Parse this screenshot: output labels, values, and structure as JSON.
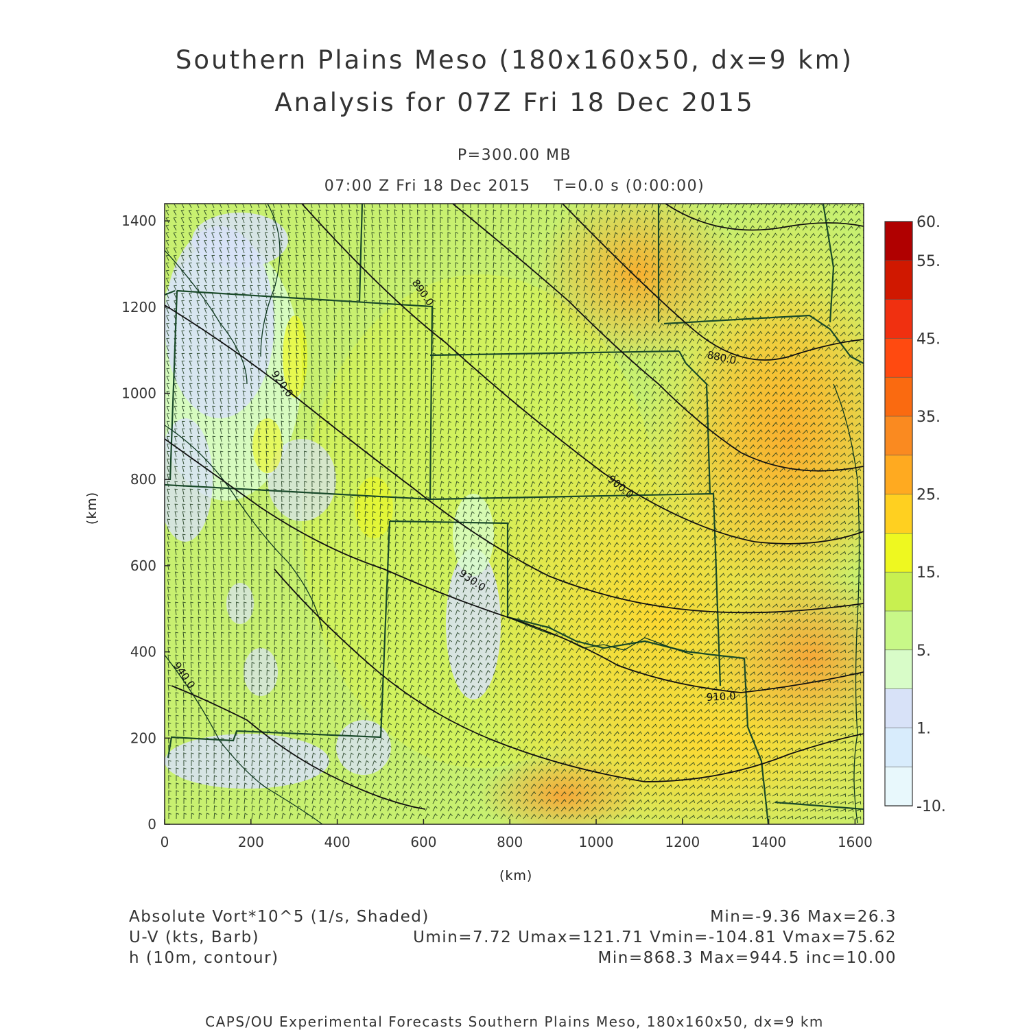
{
  "title": {
    "line1": "Southern Plains Meso (180x160x50, dx=9 km)",
    "line2": "Analysis for 07Z Fri 18 Dec 2015"
  },
  "subtitle": {
    "level": "P=300.00 MB",
    "time": "07:00 Z Fri 18 Dec 2015    T=0.0 s (0:00:00)"
  },
  "axes": {
    "xlabel": "(km)",
    "ylabel": "(km)",
    "xlim": [
      0,
      1620
    ],
    "ylim": [
      0,
      1440
    ],
    "xticks": [
      "0",
      "200",
      "400",
      "600",
      "800",
      "1000",
      "1200",
      "1400",
      "1600"
    ],
    "yticks": [
      "0",
      "200",
      "400",
      "600",
      "800",
      "1000",
      "1200",
      "1400"
    ]
  },
  "colorbar": {
    "labels": [
      "60.",
      "55.",
      "45.",
      "35.",
      "25.",
      "15.",
      "5.",
      "1.",
      "-10."
    ],
    "colors": [
      "#b00000",
      "#d01800",
      "#f03010",
      "#ff4a10",
      "#fa6a10",
      "#fa8a20",
      "#ffaa20",
      "#ffd020",
      "#eef820",
      "#c8f050",
      "#c8f888",
      "#d8fcc8",
      "#d8e2f8",
      "#d8ecfc",
      "#e8f8fc"
    ]
  },
  "contours": {
    "labels": [
      "880.0",
      "890.0",
      "900.0",
      "910.0",
      "920.0",
      "930.0",
      "940.0"
    ]
  },
  "legend": {
    "field1_name": "Absolute Vort*10^5 (1/s, Shaded)",
    "field1_stats": "Min=-9.36 Max=26.3",
    "field2_name": "U-V (kts, Barb)",
    "field2_stats": "Umin=7.72 Umax=121.71 Vmin=-104.81 Vmax=75.62",
    "field3_name": "h (10m, contour)",
    "field3_stats": "Min=868.3 Max=944.5 inc=10.00"
  },
  "footer": "CAPS/OU Experimental Forecasts  Southern Plains Meso, 180x160x50, dx=9 km"
}
